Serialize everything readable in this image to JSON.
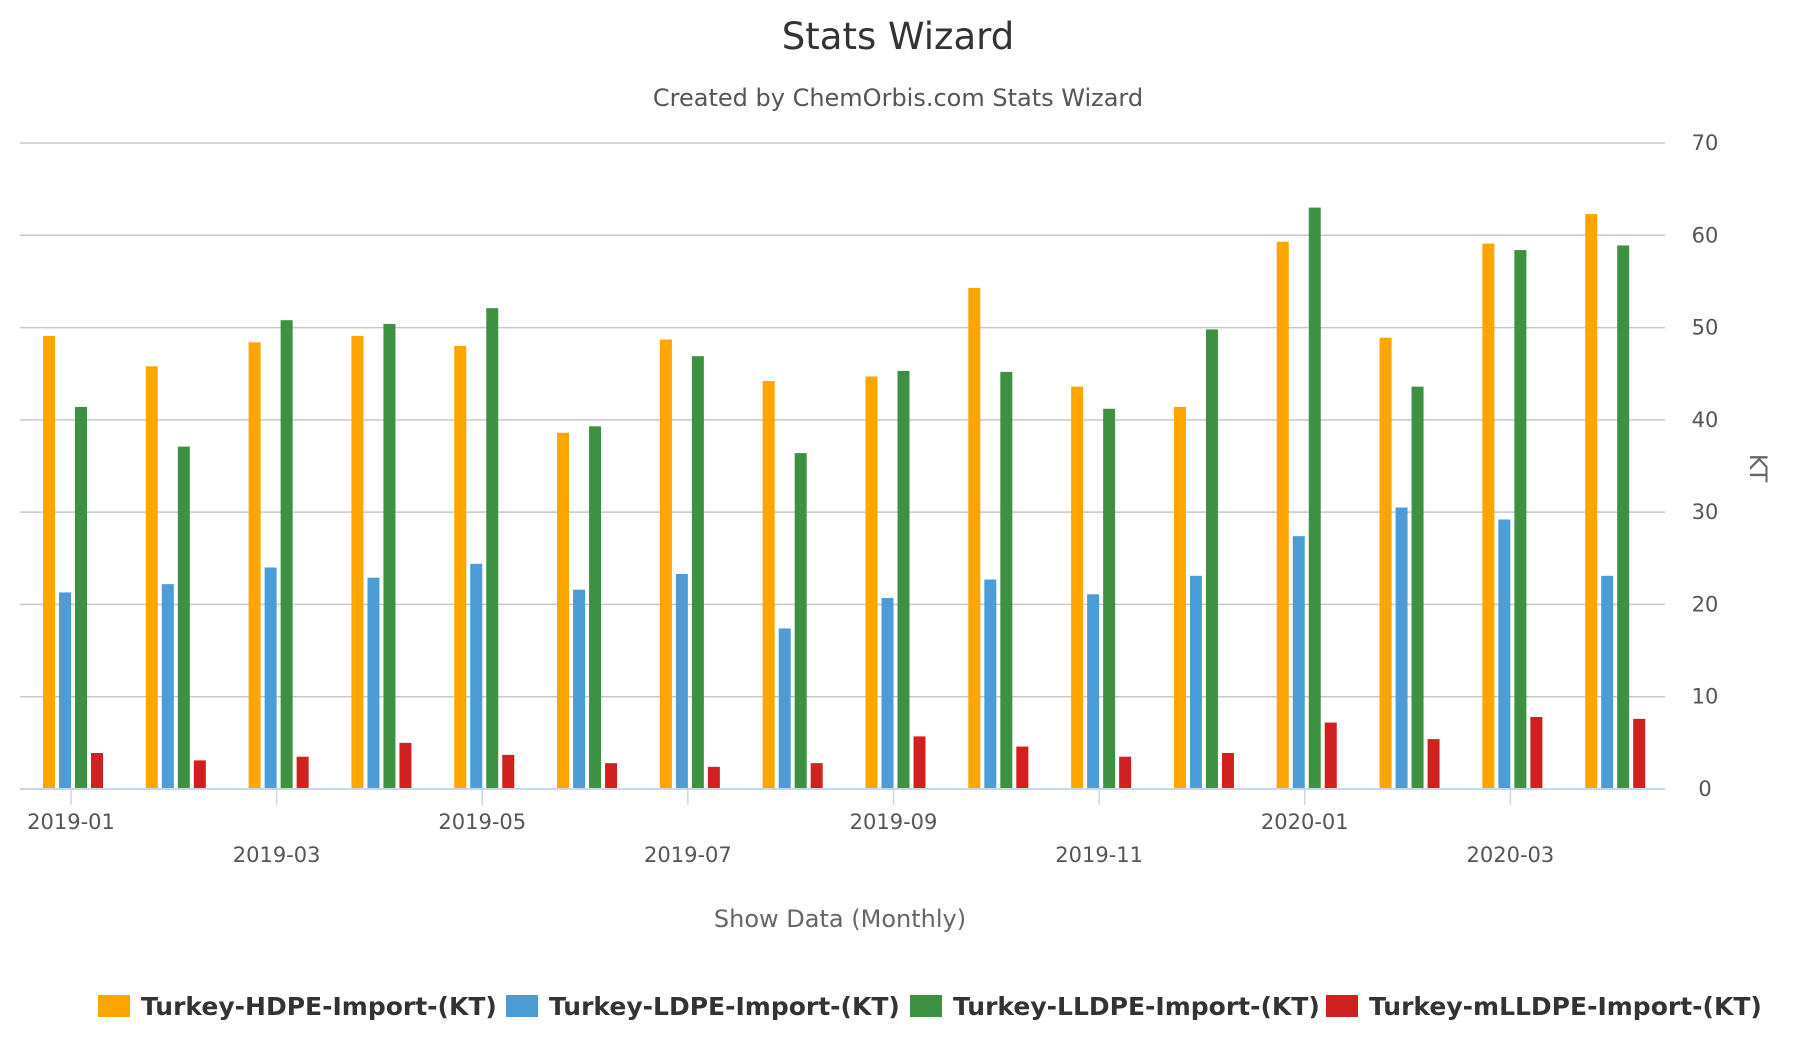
{
  "chart_data": {
    "type": "bar",
    "title": "Stats Wizard",
    "subtitle": "Created by ChemOrbis.com Stats Wizard",
    "xlabel": "Show Data (Monthly)",
    "ylabel": "KT",
    "y_axis_side": "right",
    "ylim": [
      0,
      70
    ],
    "y_ticks": [
      0,
      10,
      20,
      30,
      40,
      50,
      60,
      70
    ],
    "grid": true,
    "legend_position": "bottom",
    "categories": [
      "2019-01",
      "2019-02",
      "2019-03",
      "2019-04",
      "2019-05",
      "2019-06",
      "2019-07",
      "2019-08",
      "2019-09",
      "2019-10",
      "2019-11",
      "2019-12",
      "2020-01",
      "2020-02",
      "2020-03",
      "2020-04"
    ],
    "x_tick_labels": [
      {
        "index": 0,
        "label": "2019-01",
        "row": 0
      },
      {
        "index": 2,
        "label": "2019-03",
        "row": 1
      },
      {
        "index": 4,
        "label": "2019-05",
        "row": 0
      },
      {
        "index": 6,
        "label": "2019-07",
        "row": 1
      },
      {
        "index": 8,
        "label": "2019-09",
        "row": 0
      },
      {
        "index": 10,
        "label": "2019-11",
        "row": 1
      },
      {
        "index": 12,
        "label": "2020-01",
        "row": 0
      },
      {
        "index": 14,
        "label": "2020-03",
        "row": 1
      }
    ],
    "series": [
      {
        "name": "Turkey-HDPE-Import-(KT)",
        "color": "#FFA500",
        "values": [
          49.1,
          45.8,
          48.4,
          49.1,
          48.0,
          38.6,
          48.7,
          44.2,
          44.7,
          54.3,
          43.6,
          41.4,
          59.3,
          48.9,
          59.1,
          62.3
        ]
      },
      {
        "name": "Turkey-LDPE-Import-(KT)",
        "color": "#4C9CD8",
        "values": [
          21.3,
          22.2,
          24.0,
          22.9,
          24.4,
          21.6,
          23.3,
          17.4,
          20.7,
          22.7,
          21.1,
          23.1,
          27.4,
          30.5,
          29.2,
          23.1
        ]
      },
      {
        "name": "Turkey-LLDPE-Import-(KT)",
        "color": "#3E9142",
        "values": [
          41.4,
          37.1,
          50.8,
          50.4,
          52.1,
          39.3,
          46.9,
          36.4,
          45.3,
          45.2,
          41.2,
          49.8,
          63.0,
          43.6,
          58.4,
          58.9
        ]
      },
      {
        "name": "Turkey-mLLDPE-Import-(KT)",
        "color": "#D0201F",
        "values": [
          3.9,
          3.1,
          3.5,
          5.0,
          3.7,
          2.8,
          2.4,
          2.8,
          5.7,
          4.6,
          3.5,
          3.9,
          7.2,
          5.4,
          7.8,
          7.6
        ]
      }
    ]
  }
}
